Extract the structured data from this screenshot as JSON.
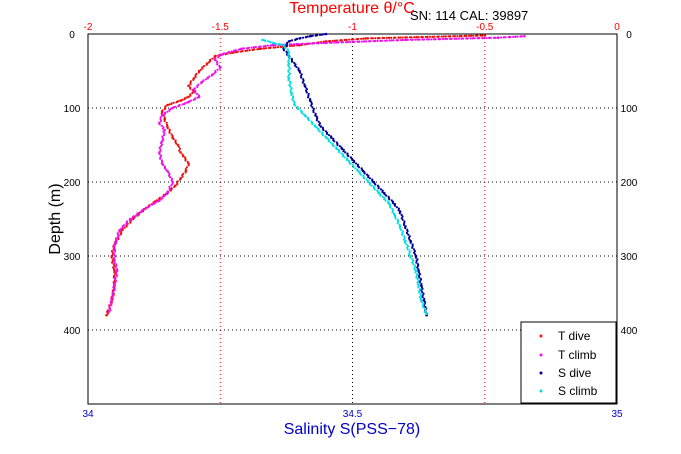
{
  "chart_data": {
    "type": "scatter",
    "header_note": "SN: 114  CAL: 39897",
    "top_axis": {
      "label": "Temperature θ/°C",
      "range": [
        -2,
        0
      ],
      "ticks": [
        "-2",
        "-1.5",
        "-1",
        "-0.5",
        "0"
      ],
      "color": "#ff0000"
    },
    "bottom_axis": {
      "label": "Salinity S(PSS−78)",
      "range": [
        34,
        35
      ],
      "ticks": [
        "34",
        "34.5",
        "35"
      ],
      "color": "#0000cc"
    },
    "y_axis": {
      "label": "Depth (m)",
      "range": [
        0,
        500
      ],
      "inverted": true,
      "ticks": [
        "0",
        "100",
        "200",
        "300",
        "400"
      ]
    },
    "grid": true,
    "legend_position": "bottom-right",
    "series": [
      {
        "name": "T dive",
        "axis": "temperature",
        "color": "#ee1111",
        "points": [
          [
            -0.5,
            2
          ],
          [
            -0.95,
            6
          ],
          [
            -1.1,
            10
          ],
          [
            -1.2,
            15
          ],
          [
            -1.35,
            20
          ],
          [
            -1.45,
            25
          ],
          [
            -1.52,
            30
          ],
          [
            -1.55,
            40
          ],
          [
            -1.58,
            50
          ],
          [
            -1.6,
            60
          ],
          [
            -1.62,
            70
          ],
          [
            -1.6,
            78
          ],
          [
            -1.62,
            85
          ],
          [
            -1.65,
            90
          ],
          [
            -1.7,
            96
          ],
          [
            -1.72,
            105
          ],
          [
            -1.71,
            115
          ],
          [
            -1.7,
            125
          ],
          [
            -1.68,
            140
          ],
          [
            -1.66,
            150
          ],
          [
            -1.65,
            160
          ],
          [
            -1.64,
            165
          ],
          [
            -1.62,
            175
          ],
          [
            -1.63,
            185
          ],
          [
            -1.65,
            195
          ],
          [
            -1.67,
            205
          ],
          [
            -1.7,
            215
          ],
          [
            -1.74,
            225
          ],
          [
            -1.78,
            235
          ],
          [
            -1.83,
            250
          ],
          [
            -1.87,
            265
          ],
          [
            -1.9,
            285
          ],
          [
            -1.91,
            300
          ],
          [
            -1.9,
            320
          ],
          [
            -1.9,
            340
          ],
          [
            -1.91,
            360
          ],
          [
            -1.93,
            380
          ]
        ]
      },
      {
        "name": "T climb",
        "axis": "temperature",
        "color": "#ee11ee",
        "points": [
          [
            -0.35,
            3
          ],
          [
            -0.45,
            5
          ],
          [
            -0.8,
            8
          ],
          [
            -1.1,
            12
          ],
          [
            -1.3,
            15
          ],
          [
            -1.42,
            20
          ],
          [
            -1.5,
            28
          ],
          [
            -1.52,
            35
          ],
          [
            -1.5,
            45
          ],
          [
            -1.53,
            55
          ],
          [
            -1.57,
            65
          ],
          [
            -1.6,
            75
          ],
          [
            -1.58,
            85
          ],
          [
            -1.62,
            92
          ],
          [
            -1.68,
            100
          ],
          [
            -1.72,
            110
          ],
          [
            -1.73,
            120
          ],
          [
            -1.71,
            130
          ],
          [
            -1.72,
            145
          ],
          [
            -1.73,
            160
          ],
          [
            -1.72,
            175
          ],
          [
            -1.7,
            185
          ],
          [
            -1.68,
            200
          ],
          [
            -1.7,
            215
          ],
          [
            -1.73,
            225
          ],
          [
            -1.78,
            235
          ],
          [
            -1.84,
            250
          ],
          [
            -1.88,
            265
          ],
          [
            -1.9,
            285
          ],
          [
            -1.9,
            305
          ],
          [
            -1.89,
            320
          ],
          [
            -1.9,
            340
          ],
          [
            -1.91,
            360
          ],
          [
            -1.92,
            375
          ]
        ]
      },
      {
        "name": "S dive",
        "axis": "salinity",
        "color": "#000099",
        "points": [
          [
            34.45,
            0
          ],
          [
            34.42,
            3
          ],
          [
            34.4,
            6
          ],
          [
            34.38,
            10
          ],
          [
            34.37,
            20
          ],
          [
            34.38,
            30
          ],
          [
            34.4,
            50
          ],
          [
            34.41,
            70
          ],
          [
            34.42,
            90
          ],
          [
            34.43,
            110
          ],
          [
            34.44,
            125
          ],
          [
            34.46,
            140
          ],
          [
            34.48,
            155
          ],
          [
            34.5,
            170
          ],
          [
            34.52,
            185
          ],
          [
            34.54,
            200
          ],
          [
            34.56,
            215
          ],
          [
            34.58,
            230
          ],
          [
            34.59,
            240
          ],
          [
            34.6,
            260
          ],
          [
            34.61,
            280
          ],
          [
            34.62,
            300
          ],
          [
            34.625,
            320
          ],
          [
            34.63,
            340
          ],
          [
            34.635,
            360
          ],
          [
            34.64,
            380
          ]
        ]
      },
      {
        "name": "S climb",
        "axis": "salinity",
        "color": "#00e0e0",
        "points": [
          [
            34.33,
            8
          ],
          [
            34.35,
            12
          ],
          [
            34.37,
            15
          ],
          [
            34.38,
            25
          ],
          [
            34.38,
            40
          ],
          [
            34.38,
            60
          ],
          [
            34.385,
            80
          ],
          [
            34.39,
            95
          ],
          [
            34.41,
            110
          ],
          [
            34.43,
            125
          ],
          [
            34.45,
            140
          ],
          [
            34.47,
            155
          ],
          [
            34.49,
            170
          ],
          [
            34.51,
            185
          ],
          [
            34.53,
            200
          ],
          [
            34.55,
            215
          ],
          [
            34.57,
            230
          ],
          [
            34.58,
            245
          ],
          [
            34.59,
            260
          ],
          [
            34.6,
            280
          ],
          [
            34.61,
            300
          ],
          [
            34.62,
            320
          ],
          [
            34.625,
            340
          ],
          [
            34.63,
            360
          ],
          [
            34.64,
            378
          ]
        ]
      }
    ]
  }
}
